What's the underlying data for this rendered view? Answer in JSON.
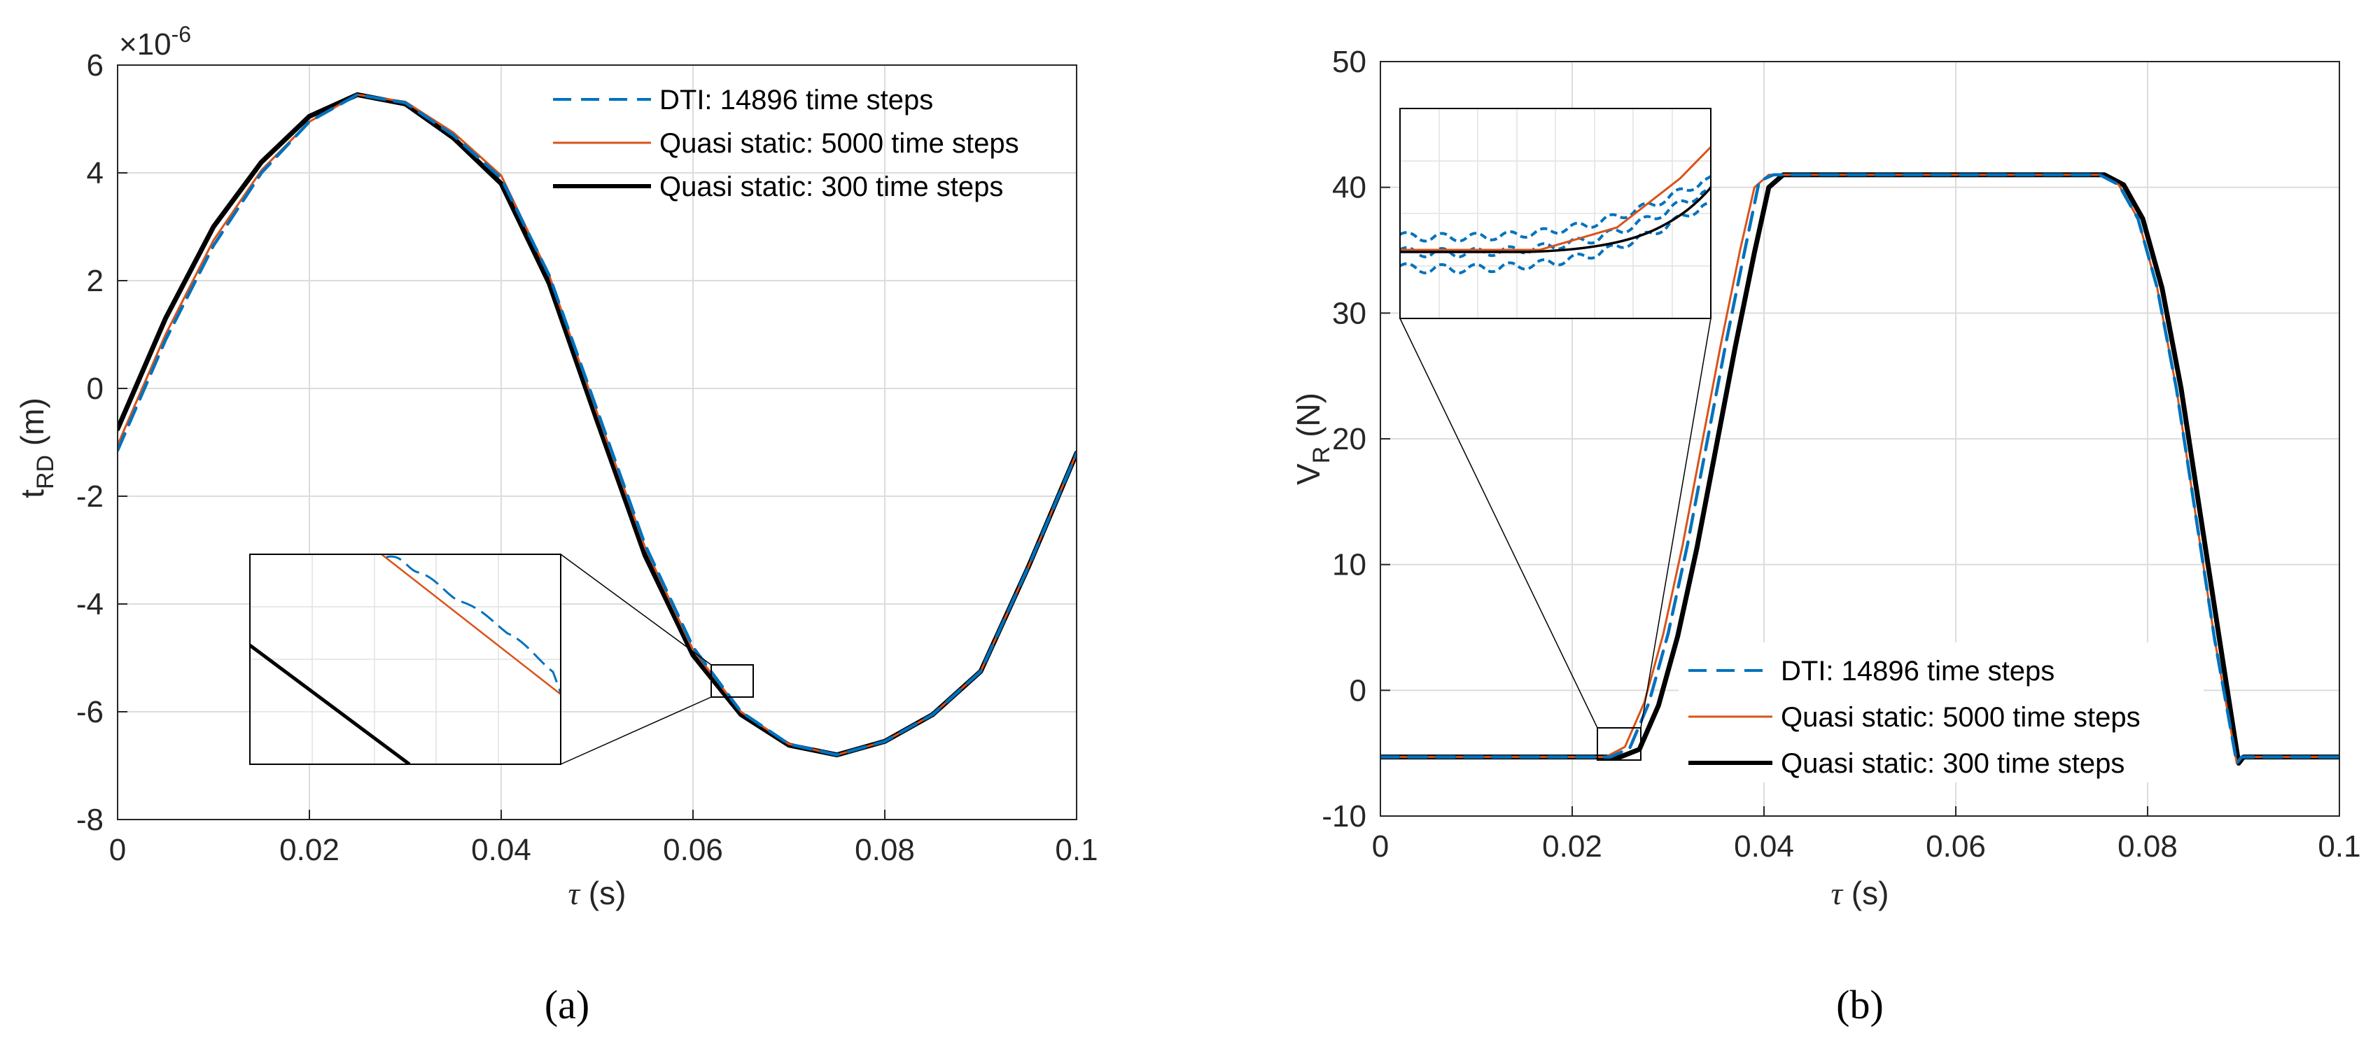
{
  "colors": {
    "dti": "#0072BD",
    "qs5000": "#D95319",
    "qs300": "#000000",
    "grid": "#dcdcdc",
    "axis": "#262626"
  },
  "chart_data": [
    {
      "id": "a",
      "type": "line",
      "panel_label": "(a)",
      "xlabel_sym": "τ",
      "xlabel_unit": " (s)",
      "ylabel_main": "t",
      "ylabel_sub": "RD",
      "ylabel_unit": " (m)",
      "y_exponent": "×10",
      "y_exponent_power": "-6",
      "xlim": [
        0,
        0.1
      ],
      "ylim": [
        -8,
        6
      ],
      "xticks": [
        "0",
        "0.02",
        "0.04",
        "0.06",
        "0.08",
        "0.1"
      ],
      "yticks": [
        "-8",
        "-6",
        "-4",
        "-2",
        "0",
        "2",
        "4",
        "6"
      ],
      "legend_position": "top-right",
      "series": [
        {
          "name": "DTI: 14896 time steps",
          "style": "dashed",
          "key": "dti",
          "x": [
            0,
            0.005,
            0.01,
            0.015,
            0.02,
            0.025,
            0.03,
            0.035,
            0.04,
            0.045,
            0.05,
            0.055,
            0.06,
            0.065,
            0.07,
            0.075,
            0.08,
            0.085,
            0.09,
            0.095,
            0.1
          ],
          "y": [
            -1.15,
            0.9,
            2.65,
            4.0,
            4.95,
            5.45,
            5.3,
            4.7,
            3.9,
            2.1,
            -0.4,
            -2.9,
            -4.8,
            -6.0,
            -6.6,
            -6.8,
            -6.55,
            -6.05,
            -5.25,
            -3.3,
            -1.2
          ]
        },
        {
          "name": "Quasi static: 5000 time steps",
          "style": "solid",
          "key": "qs5000",
          "x": [
            0,
            0.005,
            0.01,
            0.015,
            0.02,
            0.025,
            0.03,
            0.035,
            0.04,
            0.045,
            0.05,
            0.055,
            0.06,
            0.065,
            0.07,
            0.075,
            0.08,
            0.085,
            0.09,
            0.095,
            0.1
          ],
          "y": [
            -1.05,
            1.0,
            2.75,
            4.05,
            4.95,
            5.45,
            5.32,
            4.75,
            3.95,
            2.1,
            -0.45,
            -2.95,
            -4.85,
            -6.0,
            -6.6,
            -6.8,
            -6.55,
            -6.05,
            -5.25,
            -3.3,
            -1.2
          ]
        },
        {
          "name": "Quasi static: 300 time steps",
          "style": "solid-thick",
          "key": "qs300",
          "x": [
            0,
            0.005,
            0.01,
            0.015,
            0.02,
            0.025,
            0.03,
            0.035,
            0.04,
            0.045,
            0.05,
            0.055,
            0.06,
            0.065,
            0.07,
            0.075,
            0.08,
            0.085,
            0.09,
            0.095,
            0.1
          ],
          "y": [
            -0.75,
            1.3,
            3.0,
            4.2,
            5.05,
            5.45,
            5.28,
            4.65,
            3.8,
            1.95,
            -0.6,
            -3.1,
            -4.95,
            -6.05,
            -6.62,
            -6.8,
            -6.55,
            -6.05,
            -5.25,
            -3.3,
            -1.2
          ]
        }
      ]
    },
    {
      "id": "b",
      "type": "line",
      "panel_label": "(b)",
      "xlabel_sym": "τ",
      "xlabel_unit": " (s)",
      "ylabel_main": "V",
      "ylabel_sub": "R",
      "ylabel_unit": " (N)",
      "xlim": [
        0,
        0.1
      ],
      "ylim": [
        -10,
        50
      ],
      "xticks": [
        "0",
        "0.02",
        "0.04",
        "0.06",
        "0.08",
        "0.1"
      ],
      "yticks": [
        "-10",
        "0",
        "10",
        "20",
        "30",
        "40",
        "50"
      ],
      "legend_position": "bottom-right",
      "series": [
        {
          "name": "DTI: 14896 time steps",
          "style": "dashed",
          "key": "dti",
          "x": [
            0,
            0.024,
            0.026,
            0.028,
            0.03,
            0.032,
            0.034,
            0.036,
            0.038,
            0.0395,
            0.041,
            0.06,
            0.075,
            0.077,
            0.079,
            0.081,
            0.083,
            0.085,
            0.087,
            0.0893,
            0.0898,
            0.1
          ],
          "y": [
            -5.3,
            -5.3,
            -4.6,
            -1.0,
            4.5,
            11.5,
            19.5,
            27.5,
            35.0,
            40.5,
            41.0,
            41.0,
            41.0,
            40.2,
            37.5,
            32.0,
            24.0,
            14.0,
            4.0,
            -5.8,
            -5.3,
            -5.3
          ]
        },
        {
          "name": "Quasi static: 5000 time steps",
          "style": "solid",
          "key": "qs5000",
          "x": [
            0,
            0.0235,
            0.0255,
            0.0275,
            0.0295,
            0.0315,
            0.0335,
            0.0355,
            0.0375,
            0.039,
            0.0405,
            0.06,
            0.075,
            0.077,
            0.079,
            0.081,
            0.083,
            0.085,
            0.087,
            0.0893,
            0.0898,
            0.1
          ],
          "y": [
            -5.3,
            -5.3,
            -4.5,
            -1.0,
            4.5,
            11.5,
            19.5,
            27.5,
            35.0,
            40.0,
            41.0,
            41.0,
            41.0,
            40.2,
            37.5,
            32.0,
            24.0,
            14.0,
            4.0,
            -5.8,
            -5.3,
            -5.3
          ]
        },
        {
          "name": "Quasi static: 300 time steps",
          "style": "solid-thick",
          "key": "qs300",
          "x": [
            0,
            0.025,
            0.027,
            0.029,
            0.031,
            0.033,
            0.035,
            0.037,
            0.039,
            0.0405,
            0.042,
            0.06,
            0.0755,
            0.0775,
            0.0795,
            0.0815,
            0.0835,
            0.0855,
            0.0875,
            0.0895,
            0.09,
            0.1
          ],
          "y": [
            -5.3,
            -5.3,
            -4.7,
            -1.2,
            4.3,
            11.3,
            19.3,
            27.3,
            34.8,
            40.0,
            41.0,
            41.0,
            41.0,
            40.2,
            37.5,
            32.0,
            24.0,
            14.0,
            4.0,
            -5.8,
            -5.3,
            -5.3
          ]
        }
      ]
    }
  ]
}
